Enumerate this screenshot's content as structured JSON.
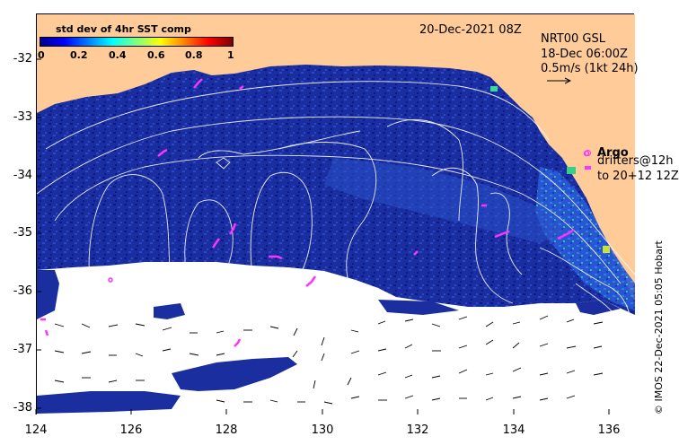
{
  "map": {
    "date_title": "20-Dec-2021 08Z",
    "product_lines": [
      "NRT00 GSL",
      "18-Dec 06:00Z",
      "0.5m/s (1kt 24h)"
    ],
    "legend": {
      "argo_label": "Argo",
      "drifters_label": "drifters@12h",
      "drifters_to_label": "to 20+12 12Z",
      "argo_color": "#ff33ff",
      "drifter_color": "#ff33ff"
    },
    "credit": "© IMOS 22-Dec-2021 05:05 Hobart",
    "colorbar": {
      "title": "std dev of 4hr SST comp",
      "ticks": [
        "0",
        "0.2",
        "0.4",
        "0.6",
        "0.8",
        "1"
      ],
      "range": [
        0,
        1
      ],
      "colormap": "jet"
    },
    "colors": {
      "land": "#ffcc99",
      "ocean_low": "#1a2ea0",
      "cloud_mask": "#ffffff",
      "contours": "#ffffff",
      "current_vectors": "#000000"
    },
    "x_axis": {
      "ticks": [
        "124",
        "126",
        "128",
        "130",
        "132",
        "134",
        "136"
      ],
      "range": [
        124,
        136.5
      ]
    },
    "y_axis": {
      "ticks": [
        "-32",
        "-33",
        "-34",
        "-35",
        "-36",
        "-37",
        "-38"
      ],
      "range": [
        -38.1,
        -31.3
      ]
    }
  }
}
